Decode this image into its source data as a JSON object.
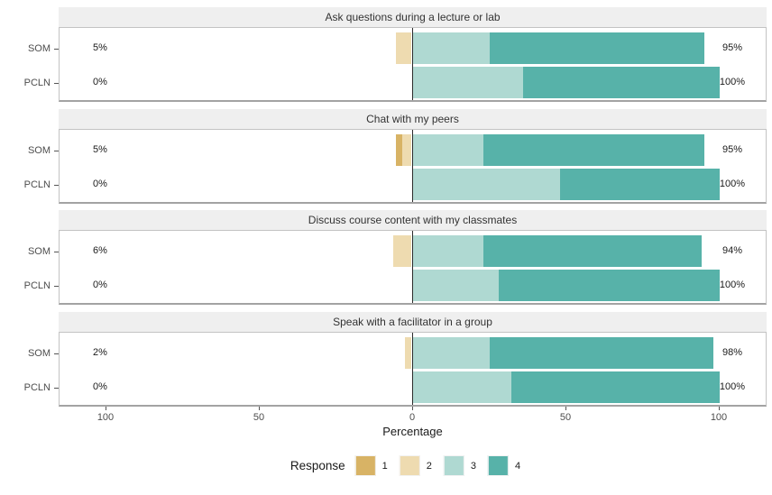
{
  "colors": {
    "response_1": "#D8B365",
    "response_2": "#EEDBB0",
    "response_3": "#AFD9D2",
    "response_4": "#57B2A9",
    "panel_header_bg": "#EFEFEF",
    "panel_border": "#C3C3C3",
    "zero_line": "#2b2b2b",
    "axis_text": "#4D4D4D",
    "bar_label_text": "#1a1a1a"
  },
  "axis": {
    "label": "Percentage",
    "ticks": [
      "100",
      "50",
      "0",
      "50",
      "100"
    ],
    "tick_values": [
      -100,
      -50,
      0,
      50,
      100
    ]
  },
  "legend": {
    "title": "Response",
    "items": [
      {
        "label": "1",
        "color": "#D8B365"
      },
      {
        "label": "2",
        "color": "#EEDBB0"
      },
      {
        "label": "3",
        "color": "#AFD9D2"
      },
      {
        "label": "4",
        "color": "#57B2A9"
      }
    ]
  },
  "chart_data": {
    "type": "bar",
    "variant": "diverging-stacked-horizontal-likert",
    "xlabel": "Percentage",
    "x_ticks": [
      -100,
      -50,
      0,
      50,
      100
    ],
    "xlim": [
      -115,
      116
    ],
    "response_scale": [
      "1",
      "2",
      "3",
      "4"
    ],
    "negative_categories": [
      "1",
      "2"
    ],
    "positive_categories": [
      "3",
      "4"
    ],
    "groups": [
      "SOM",
      "PCLN"
    ],
    "legend_position": "bottom",
    "panels": [
      {
        "title": "Ask questions during a lecture or lab",
        "rows": [
          {
            "group": "SOM",
            "segments": [
              0,
              5,
              25,
              70
            ],
            "neg_total_label": "5%",
            "pos_total_label": "95%"
          },
          {
            "group": "PCLN",
            "segments": [
              0,
              0,
              36,
              64
            ],
            "neg_total_label": "0%",
            "pos_total_label": "100%"
          }
        ]
      },
      {
        "title": "Chat with my peers",
        "rows": [
          {
            "group": "SOM",
            "segments": [
              2,
              3,
              23,
              72
            ],
            "neg_total_label": "5%",
            "pos_total_label": "95%"
          },
          {
            "group": "PCLN",
            "segments": [
              0,
              0,
              48,
              52
            ],
            "neg_total_label": "0%",
            "pos_total_label": "100%"
          }
        ]
      },
      {
        "title": "Discuss course content with my classmates",
        "rows": [
          {
            "group": "SOM",
            "segments": [
              0,
              6,
              23,
              71
            ],
            "neg_total_label": "6%",
            "pos_total_label": "94%"
          },
          {
            "group": "PCLN",
            "segments": [
              0,
              0,
              28,
              72
            ],
            "neg_total_label": "0%",
            "pos_total_label": "100%"
          }
        ]
      },
      {
        "title": "Speak with a facilitator in a group",
        "rows": [
          {
            "group": "SOM",
            "segments": [
              0,
              2,
              25,
              73
            ],
            "neg_total_label": "2%",
            "pos_total_label": "98%"
          },
          {
            "group": "PCLN",
            "segments": [
              0,
              0,
              32,
              68
            ],
            "neg_total_label": "0%",
            "pos_total_label": "100%"
          }
        ]
      }
    ]
  }
}
